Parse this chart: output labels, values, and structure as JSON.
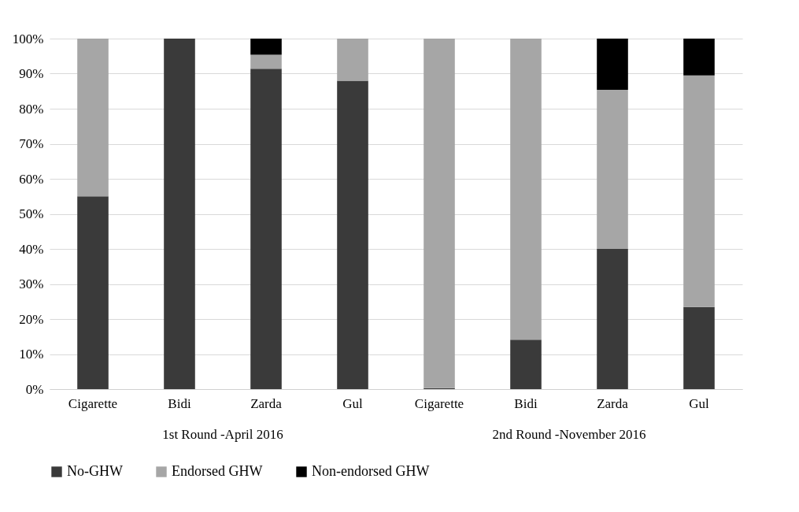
{
  "chart_data": {
    "type": "bar",
    "stacked": true,
    "categories": [
      "Cigarette",
      "Bidi",
      "Zarda",
      "Gul",
      "Cigarette",
      "Bidi",
      "Zarda",
      "Gul"
    ],
    "series": [
      {
        "name": "No-GHW",
        "color": "#3a3a3a",
        "values": [
          55,
          100,
          91.4,
          88,
          0.3,
          14.1,
          40,
          23.4
        ]
      },
      {
        "name": "Endorsed GHW",
        "color": "#a6a6a6",
        "values": [
          45,
          0,
          4,
          12,
          99.7,
          85.9,
          45.4,
          66.1
        ]
      },
      {
        "name": "Non-endorsed GHW",
        "color": "#000000",
        "values": [
          0,
          0,
          4.6,
          0,
          0,
          0,
          14.6,
          10.5
        ]
      }
    ],
    "ylim": [
      0,
      100
    ],
    "yticks": [
      {
        "value": 0,
        "label": "0%"
      },
      {
        "value": 10,
        "label": "10%"
      },
      {
        "value": 20,
        "label": "20%"
      },
      {
        "value": 30,
        "label": "30%"
      },
      {
        "value": 40,
        "label": "40%"
      },
      {
        "value": 50,
        "label": "50%"
      },
      {
        "value": 60,
        "label": "60%"
      },
      {
        "value": 70,
        "label": "70%"
      },
      {
        "value": 80,
        "label": "80%"
      },
      {
        "value": 90,
        "label": "90%"
      },
      {
        "value": 100,
        "label": "100%"
      }
    ],
    "annotations": [
      "1st  Round -April  2016",
      "2nd Round -November 2016"
    ],
    "grid": "y",
    "legend": "bottom"
  }
}
